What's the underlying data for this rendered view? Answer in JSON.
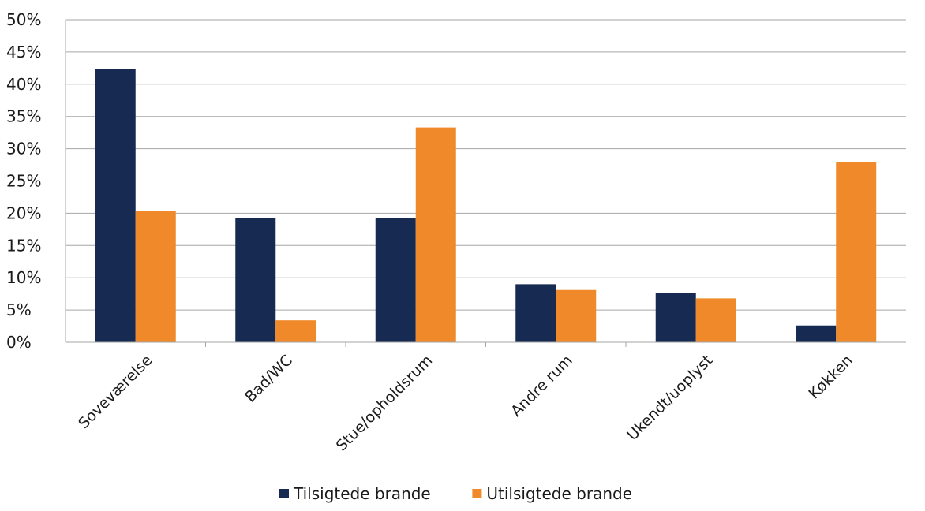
{
  "chart_data": {
    "type": "bar",
    "title": "",
    "xlabel": "",
    "ylabel": "",
    "ylim": [
      0,
      50
    ],
    "ytick_step": 5,
    "ytick_format": "percent",
    "grid": true,
    "legend_position": "bottom",
    "categories": [
      "Soveværelse",
      "Bad/WC",
      "Stue/opholdsrum",
      "Andre rum",
      "Ukendt/uoplyst",
      "Køkken"
    ],
    "series": [
      {
        "name": "Tilsigtede brande",
        "color": "#172b52",
        "values": [
          42.3,
          19.2,
          19.2,
          9.0,
          7.7,
          2.6
        ]
      },
      {
        "name": "Utilsigtede brande",
        "color": "#f0892a",
        "values": [
          20.4,
          3.4,
          33.3,
          8.1,
          6.8,
          27.9
        ]
      }
    ]
  }
}
